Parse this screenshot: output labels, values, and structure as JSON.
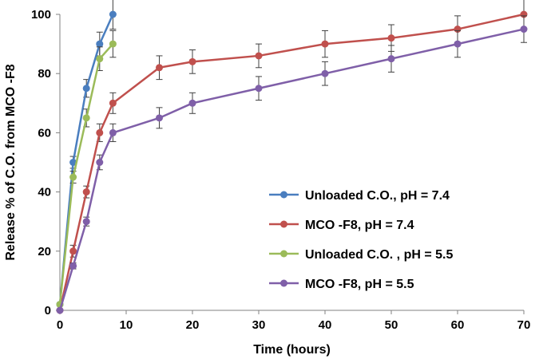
{
  "chart_data": {
    "type": "line",
    "title": "",
    "xlabel": "Time (hours)",
    "ylabel": "Release % of C.O. from MCO -F8",
    "xlim": [
      0,
      70
    ],
    "ylim": [
      0,
      100
    ],
    "xticks": [
      0,
      10,
      20,
      30,
      40,
      50,
      60,
      70
    ],
    "yticks": [
      0,
      20,
      40,
      60,
      80,
      100
    ],
    "grid": false,
    "legend_position": "lower-right",
    "series": [
      {
        "name": "Unloaded C.O., pH = 7.4",
        "color": "#4a7ebf",
        "x": [
          0,
          2,
          4,
          6,
          8
        ],
        "y": [
          2,
          50,
          75,
          90,
          100
        ],
        "error": [
          0,
          2,
          3,
          4,
          5
        ]
      },
      {
        "name": "MCO -F8, pH = 7.4",
        "color": "#c0504d",
        "x": [
          0,
          2,
          4,
          6,
          8,
          15,
          20,
          30,
          40,
          50,
          60,
          70
        ],
        "y": [
          0,
          20,
          40,
          60,
          70,
          82,
          84,
          86,
          90,
          92,
          95,
          100
        ],
        "error": [
          0,
          2,
          2,
          3,
          3.5,
          4,
          4,
          4,
          4.5,
          4.5,
          4.5,
          5
        ]
      },
      {
        "name": "Unloaded C.O. , pH  = 5.5",
        "color": "#9bbb59",
        "x": [
          0,
          2,
          4,
          6,
          8
        ],
        "y": [
          2,
          45,
          65,
          85,
          90
        ],
        "error": [
          0,
          2,
          3,
          4,
          4.5
        ]
      },
      {
        "name": "MCO -F8, pH = 5.5",
        "color": "#7f5fa8",
        "x": [
          0,
          2,
          4,
          6,
          8,
          15,
          20,
          30,
          40,
          50,
          60,
          70
        ],
        "y": [
          0,
          15,
          30,
          50,
          60,
          65,
          70,
          75,
          80,
          85,
          90,
          95
        ],
        "error": [
          0,
          1,
          1.5,
          2.5,
          3,
          3.5,
          3.5,
          4,
          4,
          4.5,
          4.5,
          4.5
        ]
      }
    ]
  }
}
